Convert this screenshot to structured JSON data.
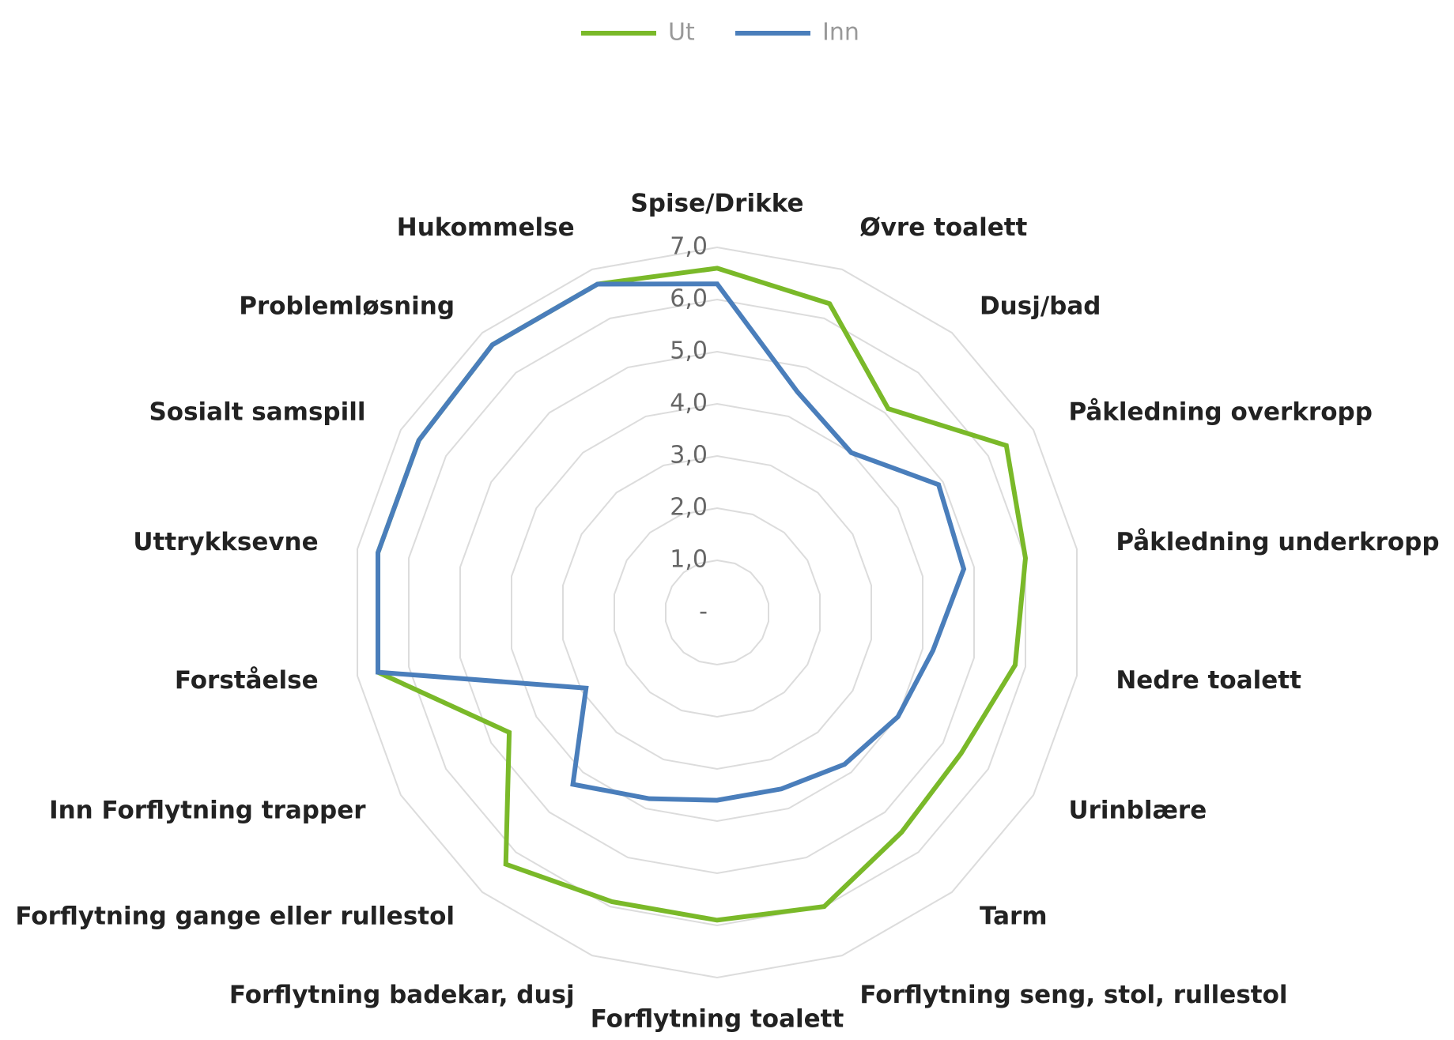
{
  "chart_data": {
    "type": "radar",
    "categories": [
      "Spise/Drikke",
      "Øvre toalett",
      "Dusj/bad",
      "Påkledning overkropp",
      "Påkledning underkropp",
      "Nedre toalett",
      "Urinblære",
      "Tarm",
      "Forflytning seng, stol, rullestol",
      "Forflytning toalett",
      "Forflytning badekar, dusj",
      "Forflytning gange eller rullestol",
      "Inn Forflytning trapper",
      "Forståelse",
      "Uttrykksevne",
      "Sosialt samspill",
      "Problemløsning",
      "Hukommelse"
    ],
    "series": [
      {
        "name": "Ut",
        "color": "#7ab929",
        "values": [
          6.6,
          6.3,
          5.1,
          6.4,
          6.0,
          5.8,
          5.4,
          5.5,
          6.0,
          5.9,
          5.9,
          6.3,
          4.6,
          6.6,
          6.6,
          6.6,
          6.7,
          6.7
        ]
      },
      {
        "name": "Inn",
        "color": "#4a7ebb",
        "values": [
          6.3,
          4.5,
          4.0,
          4.9,
          4.8,
          4.2,
          4.0,
          3.8,
          3.6,
          3.6,
          3.8,
          4.3,
          2.9,
          6.6,
          6.6,
          6.6,
          6.7,
          6.7
        ]
      }
    ],
    "ylim": [
      0,
      7
    ],
    "yticks": [
      {
        "value": 0,
        "label": "-"
      },
      {
        "value": 1,
        "label": "1,0"
      },
      {
        "value": 2,
        "label": "2,0"
      },
      {
        "value": 3,
        "label": "3,0"
      },
      {
        "value": 4,
        "label": "4,0"
      },
      {
        "value": 5,
        "label": "5,0"
      },
      {
        "value": 6,
        "label": "6,0"
      },
      {
        "value": 7,
        "label": "7,0"
      }
    ],
    "grid": true,
    "legend": "top"
  }
}
